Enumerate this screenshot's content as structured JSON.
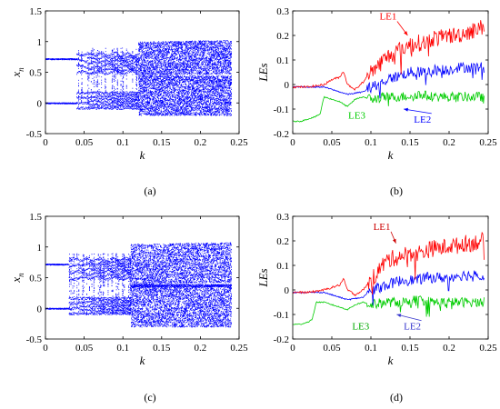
{
  "chart_data": [
    {
      "panel": "(a)",
      "type": "scatter",
      "xlabel": "k",
      "ylabel": "x_n",
      "ylabel_main": "x",
      "ylabel_sub": "n",
      "xlim": [
        0,
        0.25
      ],
      "ylim": [
        -0.5,
        1.5
      ],
      "xticks": [
        "0",
        "0.05",
        "0.1",
        "0.15",
        "0.2",
        "0.25"
      ],
      "yticks": [
        "-0.5",
        "0",
        "0.5",
        "1",
        "1.5"
      ],
      "color": "#0000ff",
      "bifurcation": {
        "stable_branches": [
          0.72,
          0.0
        ],
        "period_onset_k": 0.04,
        "chaos_onset_k": 0.12,
        "k_end": 0.24,
        "chaotic_upper_band": [
          0.45,
          1.0
        ],
        "chaotic_lower_band": [
          -0.2,
          0.35
        ]
      }
    },
    {
      "panel": "(b)",
      "type": "line",
      "xlabel": "k",
      "ylabel": "LEs",
      "xlim": [
        0,
        0.25
      ],
      "ylim": [
        -0.2,
        0.3
      ],
      "xticks": [
        "0",
        "0.05",
        "0.1",
        "0.15",
        "0.2",
        "0.25"
      ],
      "yticks": [
        "-0.2",
        "-0.1",
        "0",
        "0.1",
        "0.2",
        "0.3"
      ],
      "series": [
        {
          "name": "LE1",
          "color": "#ff0000",
          "x": [
            0,
            0.02,
            0.04,
            0.05,
            0.06,
            0.065,
            0.07,
            0.08,
            0.09,
            0.1,
            0.11,
            0.12,
            0.13,
            0.14,
            0.15,
            0.16,
            0.17,
            0.18,
            0.19,
            0.2,
            0.21,
            0.22,
            0.23,
            0.24,
            0.245
          ],
          "y": [
            -0.01,
            -0.01,
            0.0,
            0.02,
            0.03,
            0.055,
            0.0,
            -0.02,
            0.01,
            0.05,
            0.08,
            0.11,
            0.13,
            0.15,
            0.16,
            0.17,
            0.17,
            0.19,
            0.19,
            0.2,
            0.2,
            0.21,
            0.22,
            0.23,
            0.24
          ],
          "noise": 0.035
        },
        {
          "name": "LE2",
          "color": "#0000ff",
          "x": [
            0,
            0.02,
            0.04,
            0.05,
            0.07,
            0.09,
            0.1,
            0.11,
            0.12,
            0.13,
            0.14,
            0.15,
            0.16,
            0.17,
            0.18,
            0.19,
            0.2,
            0.21,
            0.22,
            0.23,
            0.24,
            0.245
          ],
          "y": [
            -0.01,
            -0.01,
            -0.01,
            -0.02,
            -0.04,
            -0.03,
            -0.01,
            0.0,
            0.02,
            0.03,
            0.04,
            0.05,
            0.05,
            0.05,
            0.06,
            0.06,
            0.06,
            0.07,
            0.07,
            0.07,
            0.07,
            0.07
          ],
          "noise": 0.022
        },
        {
          "name": "LE3",
          "color": "#00cc00",
          "x": [
            0,
            0.01,
            0.02,
            0.03,
            0.035,
            0.04,
            0.05,
            0.06,
            0.07,
            0.08,
            0.09,
            0.1,
            0.12,
            0.14,
            0.16,
            0.18,
            0.2,
            0.22,
            0.24,
            0.245
          ],
          "y": [
            -0.15,
            -0.15,
            -0.14,
            -0.13,
            -0.12,
            -0.05,
            -0.06,
            -0.07,
            -0.09,
            -0.06,
            -0.05,
            -0.06,
            -0.05,
            -0.05,
            -0.04,
            -0.05,
            -0.05,
            -0.05,
            -0.05,
            -0.06
          ],
          "noise": 0.02
        }
      ],
      "annotations": [
        {
          "text": "LE1",
          "color": "#ff0000",
          "tx": 0.122,
          "ty": 0.265,
          "px": 0.147,
          "py": 0.2
        },
        {
          "text": "LE2",
          "color": "#0000ff",
          "tx": 0.166,
          "ty": -0.155,
          "px": 0.142,
          "py": -0.1
        },
        {
          "text": "LE3",
          "color": "#00cc00",
          "tx": 0.082,
          "ty": -0.138,
          "px": null,
          "py": null
        }
      ]
    },
    {
      "panel": "(c)",
      "type": "scatter",
      "xlabel": "k",
      "ylabel": "x_n",
      "ylabel_main": "x",
      "ylabel_sub": "n",
      "xlim": [
        0,
        0.25
      ],
      "ylim": [
        -0.5,
        1.5
      ],
      "xticks": [
        "0",
        "0.05",
        "0.1",
        "0.15",
        "0.2",
        "0.25"
      ],
      "yticks": [
        "-0.5",
        "0",
        "0.5",
        "1",
        "1.5"
      ],
      "color": "#0000ff",
      "bifurcation": {
        "stable_branches": [
          0.72,
          0.0
        ],
        "period_onset_k": 0.03,
        "chaos_onset_k": 0.11,
        "k_end": 0.24,
        "chaotic_upper_band": [
          0.4,
          1.05
        ],
        "chaotic_lower_band": [
          -0.3,
          0.35
        ]
      }
    },
    {
      "panel": "(d)",
      "type": "line",
      "xlabel": "k",
      "ylabel": "LEs",
      "xlim": [
        0,
        0.25
      ],
      "ylim": [
        -0.2,
        0.3
      ],
      "xticks": [
        "0",
        "0.05",
        "0.1",
        "0.15",
        "0.2",
        "0.25"
      ],
      "yticks": [
        "-0.2",
        "-0.1",
        "0",
        "0.1",
        "0.2",
        "0.3"
      ],
      "series": [
        {
          "name": "LE1",
          "color": "#ff0000",
          "x": [
            0,
            0.02,
            0.04,
            0.05,
            0.06,
            0.065,
            0.07,
            0.08,
            0.09,
            0.1,
            0.11,
            0.12,
            0.13,
            0.14,
            0.15,
            0.16,
            0.17,
            0.18,
            0.19,
            0.2,
            0.21,
            0.22,
            0.23,
            0.24,
            0.245
          ],
          "y": [
            -0.01,
            -0.01,
            0.0,
            0.01,
            0.02,
            0.045,
            0.0,
            -0.02,
            0.0,
            0.04,
            0.08,
            0.12,
            0.13,
            0.14,
            0.15,
            0.15,
            0.16,
            0.17,
            0.17,
            0.18,
            0.18,
            0.19,
            0.19,
            0.2,
            0.2
          ],
          "noise": 0.035
        },
        {
          "name": "LE2",
          "color": "#0000ff",
          "x": [
            0,
            0.02,
            0.04,
            0.05,
            0.07,
            0.09,
            0.1,
            0.11,
            0.12,
            0.13,
            0.14,
            0.15,
            0.16,
            0.17,
            0.18,
            0.19,
            0.2,
            0.21,
            0.22,
            0.23,
            0.24,
            0.245
          ],
          "y": [
            -0.01,
            -0.01,
            -0.01,
            -0.02,
            -0.04,
            -0.03,
            0.0,
            0.01,
            0.02,
            0.03,
            0.04,
            0.04,
            0.04,
            0.05,
            0.05,
            0.05,
            0.05,
            0.06,
            0.06,
            0.06,
            0.06,
            0.05
          ],
          "noise": 0.022
        },
        {
          "name": "LE3",
          "color": "#00cc00",
          "x": [
            0,
            0.01,
            0.02,
            0.025,
            0.03,
            0.04,
            0.05,
            0.06,
            0.07,
            0.08,
            0.09,
            0.1,
            0.12,
            0.14,
            0.16,
            0.18,
            0.2,
            0.22,
            0.24,
            0.245
          ],
          "y": [
            -0.14,
            -0.14,
            -0.13,
            -0.12,
            -0.05,
            -0.05,
            -0.06,
            -0.07,
            -0.08,
            -0.06,
            -0.05,
            -0.06,
            -0.05,
            -0.05,
            -0.04,
            -0.05,
            -0.05,
            -0.05,
            -0.05,
            -0.05
          ],
          "noise": 0.02
        }
      ],
      "annotations": [
        {
          "text": "LE1",
          "color": "#cc0000",
          "tx": 0.114,
          "ty": 0.245,
          "px": 0.132,
          "py": 0.19
        },
        {
          "text": "LE2",
          "color": "#3333cc",
          "tx": 0.153,
          "ty": -0.162,
          "px": 0.133,
          "py": -0.1
        },
        {
          "text": "LE3",
          "color": "#00aa00",
          "tx": 0.087,
          "ty": -0.162,
          "px": null,
          "py": null
        }
      ]
    }
  ]
}
